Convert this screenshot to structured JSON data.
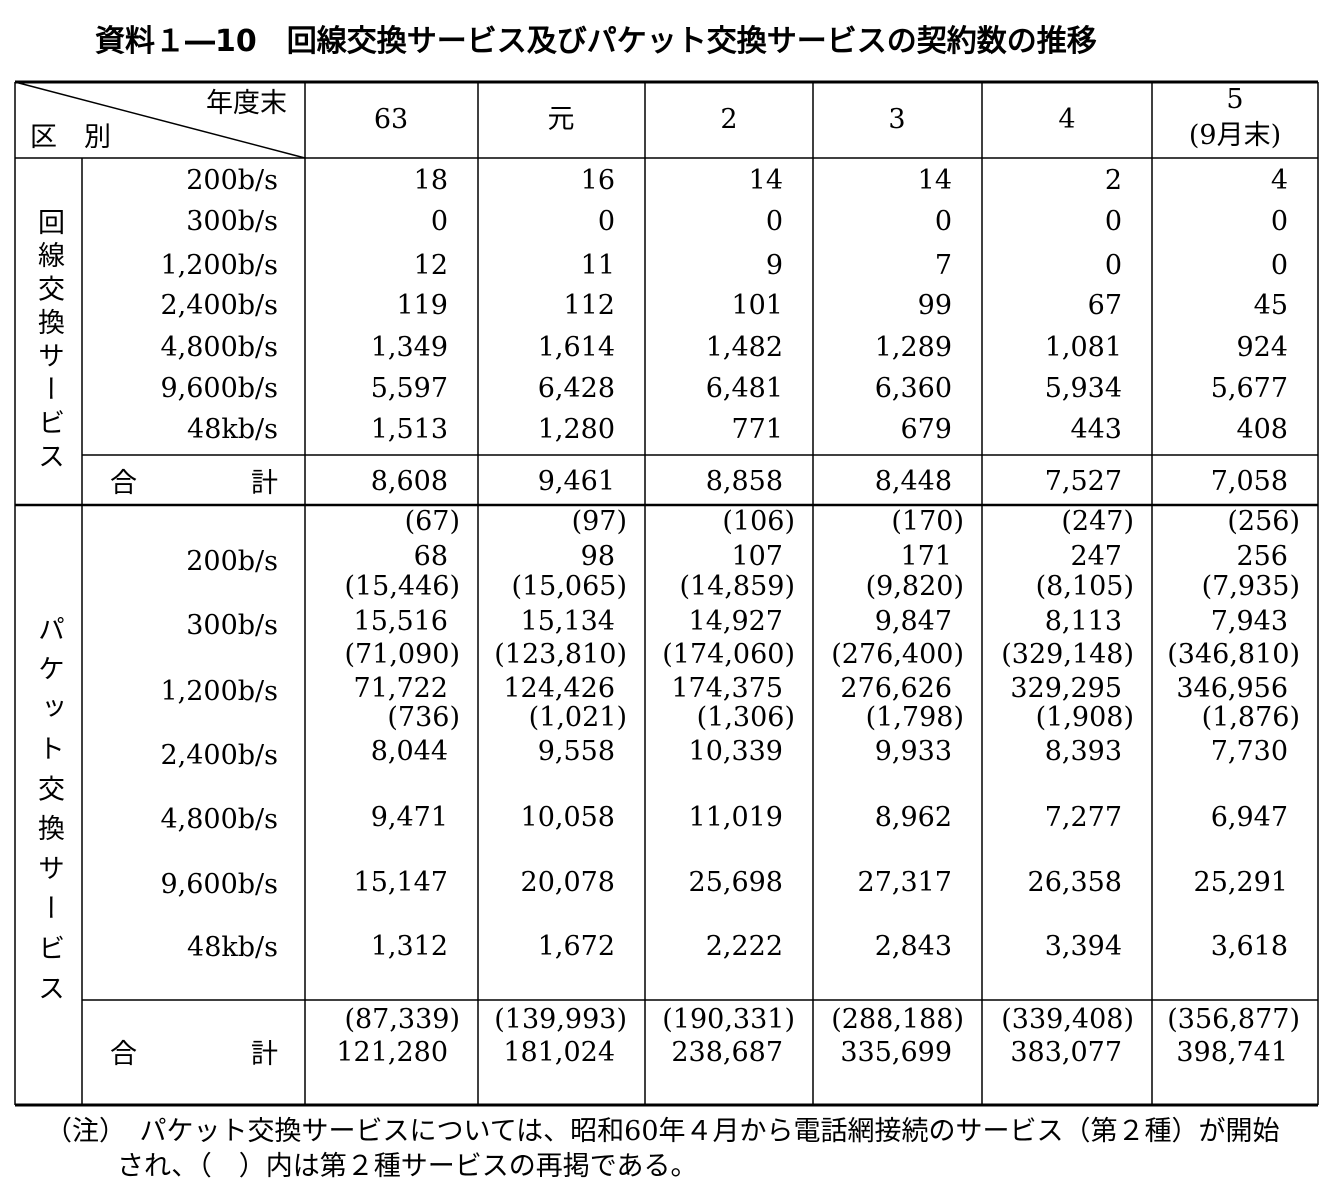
{
  "title": "資料１―10　回線交換サービス及びパケット交換サービスの契約数の推移",
  "header": {
    "corner_top": "年度末",
    "corner_bottom": "区　別",
    "columns": [
      {
        "label": "63"
      },
      {
        "label": "元"
      },
      {
        "label": "2"
      },
      {
        "label": "3"
      },
      {
        "label": "4"
      },
      {
        "label": "5",
        "sub": "(9月末)"
      }
    ]
  },
  "circuit": {
    "group": "回線交換サービス",
    "rows": [
      {
        "label": "200b/s",
        "values": [
          "18",
          "16",
          "14",
          "14",
          "2",
          "4"
        ]
      },
      {
        "label": "300b/s",
        "values": [
          "0",
          "0",
          "0",
          "0",
          "0",
          "0"
        ]
      },
      {
        "label": "1,200b/s",
        "values": [
          "12",
          "11",
          "9",
          "7",
          "0",
          "0"
        ]
      },
      {
        "label": "2,400b/s",
        "values": [
          "119",
          "112",
          "101",
          "99",
          "67",
          "45"
        ]
      },
      {
        "label": "4,800b/s",
        "values": [
          "1,349",
          "1,614",
          "1,482",
          "1,289",
          "1,081",
          "924"
        ]
      },
      {
        "label": "9,600b/s",
        "values": [
          "5,597",
          "6,428",
          "6,481",
          "6,360",
          "5,934",
          "5,677"
        ]
      },
      {
        "label": "48kb/s",
        "values": [
          "1,513",
          "1,280",
          "771",
          "679",
          "443",
          "408"
        ]
      }
    ],
    "total": {
      "label": "合　　計",
      "values": [
        "8,608",
        "9,461",
        "8,858",
        "8,448",
        "7,527",
        "7,058"
      ]
    }
  },
  "packet": {
    "group": "パケット交換サービス",
    "rows": [
      {
        "label": "200b/s",
        "sub": [
          "(67)",
          "(97)",
          "(106)",
          "(170)",
          "(247)",
          "(256)"
        ],
        "values": [
          "68",
          "98",
          "107",
          "171",
          "247",
          "256"
        ]
      },
      {
        "label": "300b/s",
        "sub": [
          "(15,446)",
          "(15,065)",
          "(14,859)",
          "(9,820)",
          "(8,105)",
          "(7,935)"
        ],
        "values": [
          "15,516",
          "15,134",
          "14,927",
          "9,847",
          "8,113",
          "7,943"
        ]
      },
      {
        "label": "1,200b/s",
        "sub": [
          "(71,090)",
          "(123,810)",
          "(174,060)",
          "(276,400)",
          "(329,148)",
          "(346,810)"
        ],
        "values": [
          "71,722",
          "124,426",
          "174,375",
          "276,626",
          "329,295",
          "346,956"
        ]
      },
      {
        "label": "2,400b/s",
        "sub": [
          "(736)",
          "(1,021)",
          "(1,306)",
          "(1,798)",
          "(1,908)",
          "(1,876)"
        ],
        "values": [
          "8,044",
          "9,558",
          "10,339",
          "9,933",
          "8,393",
          "7,730"
        ]
      },
      {
        "label": "4,800b/s",
        "values": [
          "9,471",
          "10,058",
          "11,019",
          "8,962",
          "7,277",
          "6,947"
        ]
      },
      {
        "label": "9,600b/s",
        "values": [
          "15,147",
          "20,078",
          "25,698",
          "27,317",
          "26,358",
          "25,291"
        ]
      },
      {
        "label": "48kb/s",
        "values": [
          "1,312",
          "1,672",
          "2,222",
          "2,843",
          "3,394",
          "3,618"
        ]
      }
    ],
    "total": {
      "label": "合　　計",
      "sub": [
        "(87,339)",
        "(139,993)",
        "(190,331)",
        "(288,188)",
        "(339,408)",
        "(356,877)"
      ],
      "values": [
        "121,280",
        "181,024",
        "238,687",
        "335,699",
        "383,077",
        "398,741"
      ]
    }
  },
  "note": "（注）　パケット交換サービスについては、昭和60年４月から電話網接続のサービス（第２種）が開始され、（　）内は第２種サービスの再掲である。"
}
